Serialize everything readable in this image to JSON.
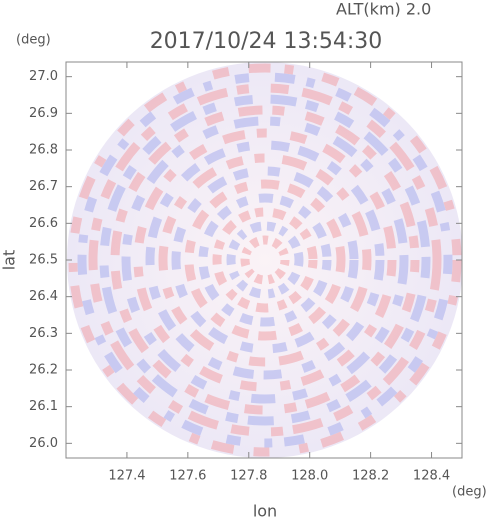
{
  "chart_data": {
    "type": "radar",
    "title": "2017/10/24 13:54:30",
    "subtitle": "ALT(km) 2.0",
    "xlabel": "lon",
    "ylabel": "lat",
    "xunit": "(deg)",
    "yunit": "(deg)",
    "xlim": [
      127.2,
      128.5
    ],
    "xticks": [
      127.4,
      127.6,
      127.8,
      {
        "value": 128,
        "label": "128.0"
      },
      128.2,
      128.4
    ],
    "ylim": [
      25.96,
      27.04
    ],
    "yticks": [
      {
        "value": 26,
        "label": "26.0"
      },
      26.1,
      26.2,
      26.3,
      26.4,
      26.5,
      26.6,
      26.7,
      26.8,
      26.9,
      {
        "value": 27,
        "label": "27.0"
      }
    ]
  }
}
